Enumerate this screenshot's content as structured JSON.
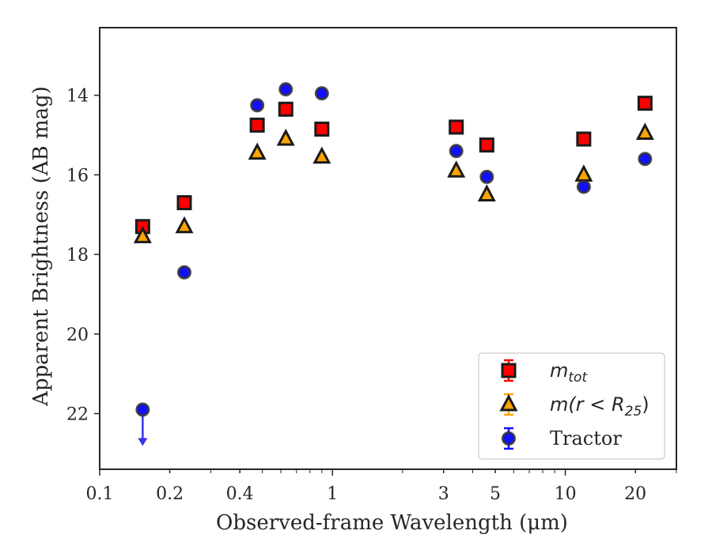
{
  "chart_data": {
    "type": "scatter",
    "title": "",
    "xlabel": "Observed-frame Wavelength (μm)",
    "ylabel": "Apparent Brightness (AB mag)",
    "xscale": "log",
    "xlim": [
      0.1,
      30
    ],
    "ylim": [
      23.4,
      12.3
    ],
    "y_inverted": true,
    "grid": false,
    "legend_position": "lower-right",
    "x_ticks": [
      0.1,
      0.2,
      0.4,
      1,
      3,
      5,
      10,
      20
    ],
    "x_tick_labels": [
      "0.1",
      "0.2",
      "0.4",
      "1",
      "3",
      "5",
      "10",
      "20"
    ],
    "y_ticks": [
      14,
      16,
      18,
      20,
      22
    ],
    "y_tick_labels": [
      "14",
      "16",
      "18",
      "20",
      "22"
    ],
    "series": [
      {
        "name_main": "m",
        "name_sub": "tot",
        "marker": "square",
        "color": "#ff0000",
        "x": [
          0.153,
          0.231,
          0.475,
          0.63,
          0.9,
          3.4,
          4.6,
          12.0,
          22.0
        ],
        "y": [
          17.3,
          16.7,
          14.75,
          14.35,
          14.85,
          14.8,
          15.25,
          15.1,
          14.2
        ]
      },
      {
        "name_main": "m(r < R",
        "name_sub": "25",
        "name_end": ")",
        "marker": "triangle",
        "color": "#ffa500",
        "x": [
          0.153,
          0.231,
          0.475,
          0.63,
          0.9,
          3.4,
          4.6,
          12.0,
          22.0
        ],
        "y": [
          17.55,
          17.3,
          15.45,
          15.1,
          15.55,
          15.9,
          16.5,
          16.0,
          14.95
        ]
      },
      {
        "name": "Tractor",
        "marker": "circle",
        "color": "#1010ff",
        "x": [
          0.153,
          0.231,
          0.475,
          0.63,
          0.9,
          3.4,
          4.6,
          12.0,
          22.0
        ],
        "y": [
          21.9,
          18.45,
          14.25,
          13.85,
          13.95,
          15.4,
          16.05,
          16.3,
          15.6
        ],
        "upper_limit_index": 0
      }
    ]
  }
}
